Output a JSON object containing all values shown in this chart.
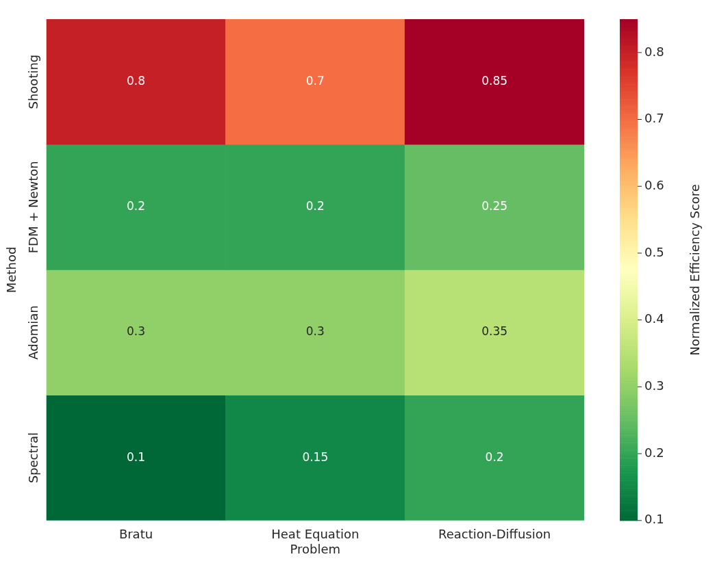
{
  "chart_data": {
    "type": "heatmap",
    "ylabel": "Method",
    "clabel": "Normalized Efficiency Score",
    "categories": [
      "Bratu",
      "Heat Equation Problem",
      "Reaction-Diffusion"
    ],
    "y_categories": [
      "Shooting",
      "FDM + Newton",
      "Adomian",
      "Spectral"
    ],
    "cells": [
      [
        0.8,
        0.7,
        0.85
      ],
      [
        0.2,
        0.2,
        0.25
      ],
      [
        0.3,
        0.3,
        0.35
      ],
      [
        0.1,
        0.15,
        0.2
      ]
    ],
    "clim": [
      0.1,
      0.85
    ],
    "cticks": [
      0.1,
      0.2,
      0.3,
      0.4,
      0.5,
      0.6,
      0.7,
      0.8
    ],
    "data_labels": true
  }
}
